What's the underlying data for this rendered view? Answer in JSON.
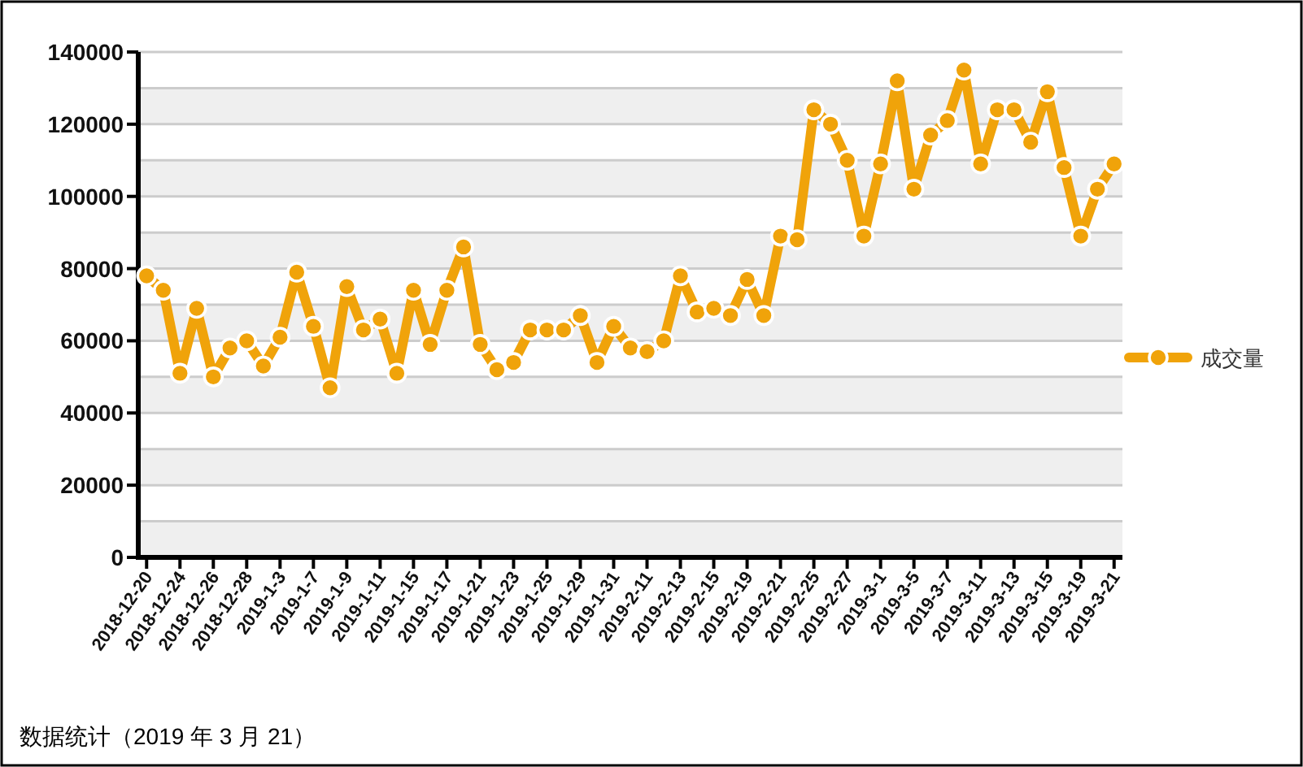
{
  "chart_data": {
    "type": "line",
    "categories": [
      "2018-12-20",
      null,
      "2018-12-24",
      null,
      "2018-12-26",
      null,
      "2018-12-28",
      null,
      "2019-1-3",
      null,
      "2019-1-7",
      null,
      "2019-1-9",
      null,
      "2019-1-11",
      null,
      "2019-1-15",
      null,
      "2019-1-17",
      null,
      "2019-1-21",
      null,
      "2019-1-23",
      null,
      "2019-1-25",
      null,
      "2019-1-29",
      null,
      "2019-1-31",
      null,
      "2019-2-11",
      null,
      "2019-2-13",
      null,
      "2019-2-15",
      null,
      "2019-2-19",
      null,
      "2019-2-21",
      null,
      "2019-2-25",
      null,
      "2019-2-27",
      null,
      "2019-3-1",
      null,
      "2019-3-5",
      null,
      "2019-3-7",
      null,
      "2019-3-11",
      null,
      "2019-3-13",
      null,
      "2019-3-15",
      null,
      "2019-3-19",
      null,
      "2019-3-21"
    ],
    "series": [
      {
        "name": "成交量",
        "color": "#f0a30a",
        "values": [
          78000,
          74000,
          51000,
          69000,
          50000,
          58000,
          60000,
          53000,
          61000,
          79000,
          64000,
          47000,
          75000,
          63000,
          66000,
          51000,
          74000,
          59000,
          74000,
          86000,
          59000,
          52000,
          54000,
          63000,
          63000,
          63000,
          67000,
          54000,
          64000,
          58000,
          57000,
          60000,
          78000,
          68000,
          69000,
          67000,
          77000,
          67000,
          89000,
          88000,
          124000,
          120000,
          110000,
          89000,
          109000,
          132000,
          102000,
          117000,
          121000,
          135000,
          109000,
          124000,
          124000,
          115000,
          129000,
          108000,
          89000,
          102000,
          109000
        ]
      }
    ],
    "ylim": [
      0,
      140000
    ],
    "yticks": [
      0,
      {
        "value": 10000,
        "label": null
      },
      20000,
      {
        "value": 30000,
        "label": null
      },
      40000,
      {
        "value": 50000,
        "label": null
      },
      60000,
      {
        "value": 70000,
        "label": null
      },
      80000,
      {
        "value": 90000,
        "label": null
      },
      100000,
      {
        "value": 110000,
        "label": null
      },
      120000,
      {
        "value": 130000,
        "label": null
      },
      140000
    ],
    "grid": "y",
    "legend": "right",
    "marker": "circle",
    "line_style": "solid",
    "annotations": [
      "数据统计（2019 年 3 月 21）"
    ]
  }
}
